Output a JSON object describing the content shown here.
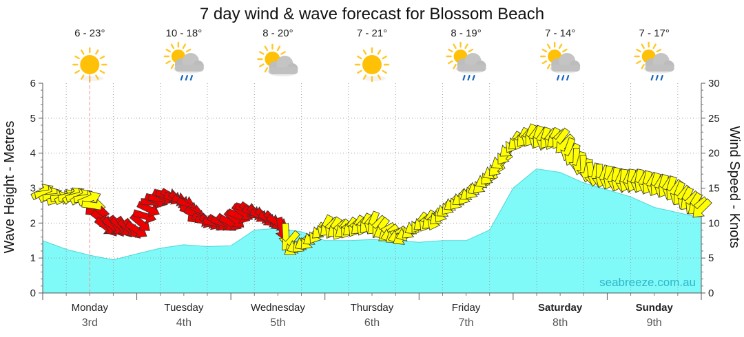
{
  "chart_data": {
    "type": "area",
    "title": "7 day wind & wave forecast for Blossom Beach",
    "ylabel_left": "Wave Height - Metres",
    "ylabel_right": "Wind Speed - Knots",
    "ylim_left": [
      0,
      6
    ],
    "ylim_right": [
      0,
      30
    ],
    "yticks_left": [
      "0",
      "1",
      "2",
      "3",
      "4",
      "5",
      "6"
    ],
    "yticks_right": [
      "0",
      "5",
      "10",
      "15",
      "20",
      "25",
      "30"
    ],
    "grid": true,
    "watermark": "seabreeze.com.au",
    "days": [
      {
        "name": "Monday",
        "date": "3rd",
        "temp": "6 - 23°",
        "icon": "sun-icon",
        "bold": false
      },
      {
        "name": "Tuesday",
        "date": "4th",
        "temp": "10 - 18°",
        "icon": "sun-rain-cloud-icon",
        "bold": false
      },
      {
        "name": "Wednesday",
        "date": "5th",
        "temp": "8 - 20°",
        "icon": "sun-cloud-icon",
        "bold": false
      },
      {
        "name": "Thursday",
        "date": "6th",
        "temp": "7 - 21°",
        "icon": "sun-icon",
        "bold": false
      },
      {
        "name": "Friday",
        "date": "7th",
        "temp": "8 - 19°",
        "icon": "sun-rain-cloud-icon",
        "bold": false
      },
      {
        "name": "Saturday",
        "date": "8th",
        "temp": "7 - 14°",
        "icon": "sun-rain-cloud-icon",
        "bold": true
      },
      {
        "name": "Sunday",
        "date": "9th",
        "temp": "7 - 17°",
        "icon": "sun-rain-cloud-icon",
        "bold": true
      }
    ],
    "wave_height": {
      "x_days": [
        0,
        0.25,
        0.5,
        0.75,
        1.0,
        1.25,
        1.5,
        1.75,
        2.0,
        2.25,
        2.5,
        2.75,
        3.0,
        3.25,
        3.5,
        3.75,
        4.0,
        4.25,
        4.5,
        4.75,
        5.0,
        5.25,
        5.5,
        5.75,
        6.0,
        6.25,
        6.5,
        6.75,
        7.0
      ],
      "values": [
        1.5,
        1.25,
        1.08,
        0.95,
        1.12,
        1.28,
        1.38,
        1.33,
        1.35,
        1.8,
        1.85,
        1.75,
        1.5,
        1.5,
        1.53,
        1.5,
        1.45,
        1.5,
        1.5,
        1.8,
        3.0,
        3.55,
        3.45,
        3.15,
        2.95,
        2.75,
        2.45,
        2.3,
        2.15
      ]
    },
    "wind": {
      "x_days": [
        0,
        0.17,
        0.33,
        0.5,
        0.67,
        0.83,
        1.0,
        1.17,
        1.33,
        1.5,
        1.67,
        1.83,
        2.0,
        2.17,
        2.33,
        2.5,
        2.67,
        2.83,
        3.0,
        3.17,
        3.33,
        3.5,
        3.67,
        3.83,
        4.0,
        4.17,
        4.33,
        4.5,
        4.67,
        4.83,
        5.0,
        5.17,
        5.33,
        5.5,
        5.67,
        5.83,
        6.0,
        6.17,
        6.33,
        6.5,
        6.67,
        6.83,
        7.0
      ],
      "speed_knots": [
        14.5,
        13.5,
        14,
        13.5,
        9.5,
        9.5,
        9,
        13,
        14,
        13,
        10.5,
        10,
        10,
        12,
        11,
        10,
        6.5,
        7.5,
        9.5,
        9,
        9.5,
        10,
        8.5,
        8,
        10,
        10.5,
        12.5,
        14,
        15.5,
        18,
        21.5,
        22.5,
        22,
        22,
        19,
        17,
        16.5,
        16,
        16,
        15.5,
        15,
        13.5,
        12
      ],
      "direction_deg": [
        70,
        80,
        65,
        75,
        135,
        140,
        130,
        100,
        110,
        120,
        105,
        110,
        125,
        115,
        120,
        130,
        240,
        230,
        215,
        225,
        220,
        210,
        240,
        245,
        225,
        215,
        230,
        225,
        235,
        230,
        220,
        210,
        205,
        225,
        190,
        180,
        200,
        195,
        200,
        205,
        205,
        215,
        225
      ]
    },
    "wind_color_scale": {
      "green": "#22dd00",
      "yellow": "#ffff00",
      "red": "#ee0000"
    },
    "colors": {
      "wave_fill": "#80f9f9",
      "wave_line": "#4fd6d6",
      "marker_line": "#ff8888"
    }
  }
}
